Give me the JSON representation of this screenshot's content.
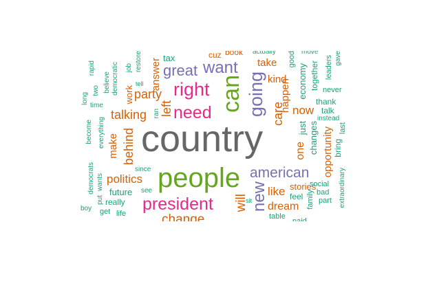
{
  "palette": {
    "teal": "#1b9e77",
    "orange": "#d95f02",
    "purple": "#7570b3",
    "magenta": "#e7298a",
    "green": "#66a61e",
    "gray": "#666666"
  },
  "words": [
    {
      "text": "country",
      "color": "#666666"
    },
    {
      "text": "people",
      "color": "#66a61e"
    },
    {
      "text": "can",
      "color": "#66a61e"
    },
    {
      "text": "president",
      "color": "#e7298a"
    },
    {
      "text": "going",
      "color": "#7570b3"
    },
    {
      "text": "right",
      "color": "#e7298a"
    },
    {
      "text": "need",
      "color": "#e7298a"
    },
    {
      "text": "want",
      "color": "#7570b3"
    },
    {
      "text": "great",
      "color": "#7570b3"
    },
    {
      "text": "american",
      "color": "#7570b3"
    },
    {
      "text": "new",
      "color": "#7570b3"
    },
    {
      "text": "party",
      "color": "#d95f02"
    },
    {
      "text": "talking",
      "color": "#d95f02"
    },
    {
      "text": "left",
      "color": "#d95f02"
    },
    {
      "text": "behind",
      "color": "#d95f02"
    },
    {
      "text": "politics",
      "color": "#d95f02"
    },
    {
      "text": "will",
      "color": "#d95f02"
    },
    {
      "text": "change",
      "color": "#d95f02"
    },
    {
      "text": "care",
      "color": "#d95f02"
    },
    {
      "text": "now",
      "color": "#d95f02"
    },
    {
      "text": "one",
      "color": "#d95f02"
    },
    {
      "text": "like",
      "color": "#d95f02"
    },
    {
      "text": "dream",
      "color": "#d95f02"
    },
    {
      "text": "opportunity",
      "color": "#d95f02"
    },
    {
      "text": "happen",
      "color": "#d95f02"
    },
    {
      "text": "kind",
      "color": "#d95f02"
    },
    {
      "text": "take",
      "color": "#d95f02"
    },
    {
      "text": "make",
      "color": "#1b9e77"
    },
    {
      "text": "answer",
      "color": "#1b9e77"
    },
    {
      "text": "stories",
      "color": "#d95f02"
    },
    {
      "text": "future",
      "color": "#1b9e77"
    },
    {
      "text": "really",
      "color": "#d95f02"
    },
    {
      "text": "tax",
      "color": "#d95f02"
    },
    {
      "text": "feel",
      "color": "#1b9e77"
    },
    {
      "text": "just",
      "color": "#1b9e77"
    },
    {
      "text": "changes",
      "color": "#1b9e77"
    },
    {
      "text": "economy",
      "color": "#1b9e77"
    },
    {
      "text": "together",
      "color": "#1b9e77"
    },
    {
      "text": "thank",
      "color": "#1b9e77"
    },
    {
      "text": "talk",
      "color": "#1b9e77"
    },
    {
      "text": "instead",
      "color": "#1b9e77"
    },
    {
      "text": "bring",
      "color": "#1b9e77"
    },
    {
      "text": "last",
      "color": "#1b9e77"
    },
    {
      "text": "never",
      "color": "#1b9e77"
    },
    {
      "text": "leaders",
      "color": "#1b9e77"
    },
    {
      "text": "gave",
      "color": "#1b9e77"
    },
    {
      "text": "good",
      "color": "#1b9e77"
    },
    {
      "text": "social",
      "color": "#1b9e77"
    },
    {
      "text": "bad",
      "color": "#1b9e77"
    },
    {
      "text": "part",
      "color": "#1b9e77"
    },
    {
      "text": "family",
      "color": "#1b9e77"
    },
    {
      "text": "extraordinary",
      "color": "#1b9e77"
    },
    {
      "text": "table",
      "color": "#1b9e77"
    },
    {
      "text": "paid",
      "color": "#1b9e77"
    },
    {
      "text": "sit",
      "color": "#1b9e77"
    },
    {
      "text": "see",
      "color": "#1b9e77"
    },
    {
      "text": "since",
      "color": "#1b9e77"
    },
    {
      "text": "ran",
      "color": "#1b9e77"
    },
    {
      "text": "democrats",
      "color": "#1b9e77"
    },
    {
      "text": "wants",
      "color": "#1b9e77"
    },
    {
      "text": "put",
      "color": "#1b9e77"
    },
    {
      "text": "boy",
      "color": "#1b9e77"
    },
    {
      "text": "get",
      "color": "#1b9e77"
    },
    {
      "text": "life",
      "color": "#1b9e77"
    },
    {
      "text": "become",
      "color": "#1b9e77"
    },
    {
      "text": "everything",
      "color": "#1b9e77"
    },
    {
      "text": "time",
      "color": "#1b9e77"
    },
    {
      "text": "long",
      "color": "#1b9e77"
    },
    {
      "text": "two",
      "color": "#1b9e77"
    },
    {
      "text": "rapid",
      "color": "#1b9e77"
    },
    {
      "text": "believe",
      "color": "#1b9e77"
    },
    {
      "text": "democratic",
      "color": "#1b9e77"
    },
    {
      "text": "work",
      "color": "#d95f02"
    },
    {
      "text": "job",
      "color": "#1b9e77"
    },
    {
      "text": "tell",
      "color": "#1b9e77"
    },
    {
      "text": "restore",
      "color": "#1b9e77"
    },
    {
      "text": "cuz",
      "color": "#d95f02"
    },
    {
      "text": "book",
      "color": "#d95f02"
    },
    {
      "text": "actually",
      "color": "#1b9e77"
    },
    {
      "text": "move",
      "color": "#1b9e77"
    }
  ]
}
